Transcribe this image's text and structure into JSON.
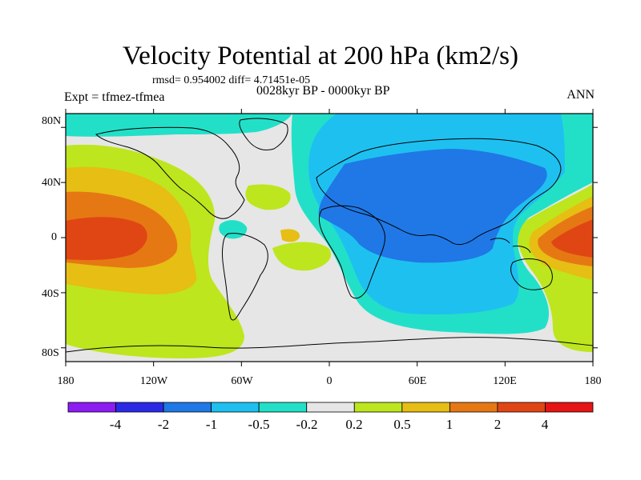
{
  "header": {
    "title": "Velocity Potential at 200 hPa (km2/s)",
    "stats": "rmsd= 0.954002 diff= 4.71451e-05",
    "experiment": "Expt = tfmez-tfmea",
    "period": "0028kyr BP - 0000kyr BP",
    "season": "ANN"
  },
  "map": {
    "y_axis_labels": [
      "80N",
      "40N",
      "0",
      "40S",
      "80S"
    ],
    "x_axis_labels": [
      "180",
      "120W",
      "60W",
      "0",
      "60E",
      "120E",
      "180"
    ],
    "lat_ticks": [
      80,
      40,
      0,
      -40,
      -80
    ],
    "lon_ticks": [
      -180,
      -120,
      -60,
      0,
      60,
      120,
      180
    ]
  },
  "colorbar": {
    "labels": [
      "-4",
      "-2",
      "-1",
      "-0.5",
      "-0.2",
      "0.2",
      "0.5",
      "1",
      "2",
      "4"
    ],
    "colors": [
      "#8c1cf2",
      "#2a2ae6",
      "#1f78e6",
      "#1ec0f0",
      "#22e0c8",
      "#e6e6e6",
      "#bde61e",
      "#e6be14",
      "#e67814",
      "#e04614",
      "#e61414"
    ]
  },
  "palette": {
    "lev_neg2": "#1f78e6",
    "lev_neg1": "#1ec0f0",
    "lev_neg05": "#22e0c8",
    "lev_zero": "#e6e6e6",
    "lev_pos02": "#bde61e",
    "lev_pos05": "#e6be14",
    "lev_pos1": "#e67814",
    "lev_pos2": "#e04614"
  }
}
